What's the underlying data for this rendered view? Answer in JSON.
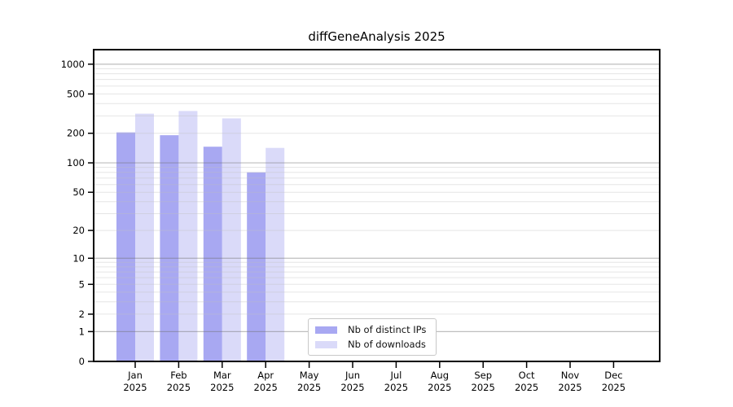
{
  "title": "diffGeneAnalysis 2025",
  "colors": {
    "bar_distinct_ips": "#a8a8f2",
    "bar_downloads": "#dadaf9",
    "grid_major": "rgba(110,110,110,0.45)",
    "grid_minor": "rgba(190,190,190,0.40)",
    "axis": "#000000",
    "legend_border": "#c8c8c8",
    "background": "#ffffff"
  },
  "chart_data": {
    "type": "bar",
    "title": "diffGeneAnalysis 2025",
    "x_axis": {
      "categories": [
        "Jan",
        "Feb",
        "Mar",
        "Apr",
        "May",
        "Jun",
        "Jul",
        "Aug",
        "Sep",
        "Oct",
        "Nov",
        "Dec"
      ],
      "year_label": "2025"
    },
    "y_axis": {
      "scale": "log10(1+x)",
      "ticks": [
        0,
        1,
        2,
        5,
        10,
        20,
        50,
        100,
        200,
        500,
        1000
      ],
      "grid_major": [
        1,
        10,
        100,
        1000
      ],
      "top_value": 1400,
      "grid": true
    },
    "series": [
      {
        "key": "distinct-ips",
        "name": "Nb of distinct IPs",
        "values": [
          204,
          191,
          146,
          80,
          null,
          null,
          null,
          null,
          null,
          null,
          null,
          null
        ]
      },
      {
        "key": "downloads",
        "name": "Nb of downloads",
        "values": [
          316,
          336,
          283,
          142,
          null,
          null,
          null,
          null,
          null,
          null,
          null,
          null
        ]
      }
    ],
    "legend_position": "bottom-center"
  }
}
